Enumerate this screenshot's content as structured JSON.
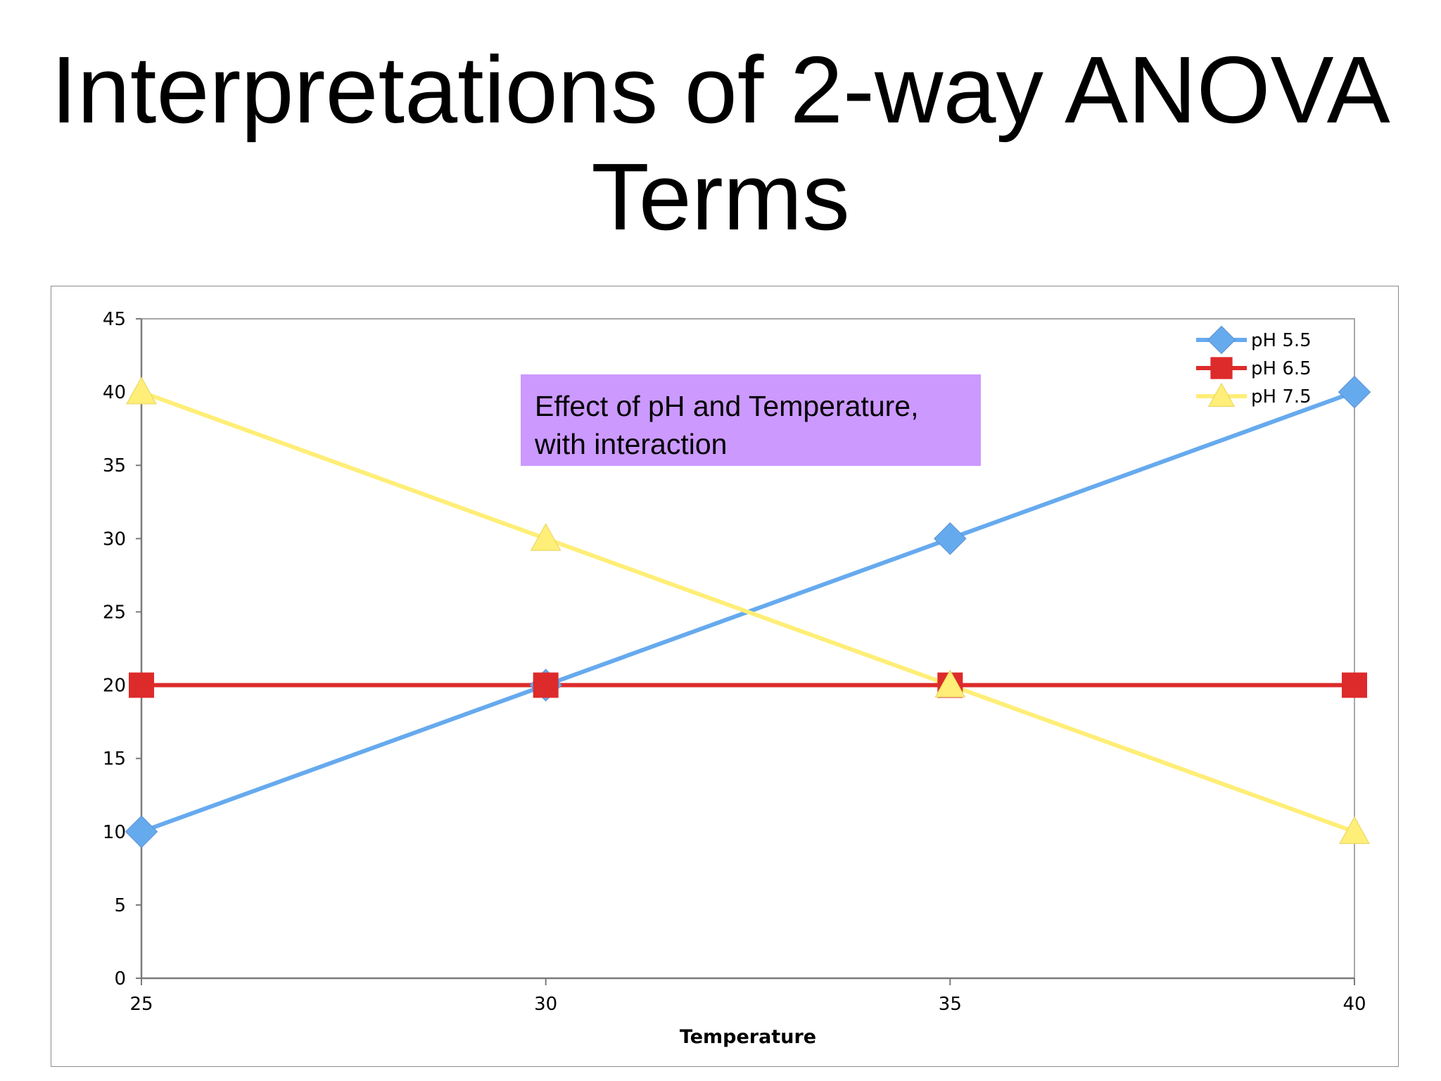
{
  "slide": {
    "title_line1": "Interpretations of 2-way ANOVA",
    "title_line2": "Terms"
  },
  "annotation": {
    "line1": "Effect of pH and Temperature,",
    "line2": "with interaction"
  },
  "chart_data": {
    "type": "line",
    "title": "",
    "xlabel": "Temperature",
    "ylabel": "",
    "x": [
      25,
      30,
      35,
      40
    ],
    "xlim": [
      25,
      40
    ],
    "ylim": [
      0,
      45
    ],
    "xticks": [
      25,
      30,
      35,
      40
    ],
    "yticks": [
      0,
      5,
      10,
      15,
      20,
      25,
      30,
      35,
      40,
      45
    ],
    "legend_position": "top-right",
    "grid": false,
    "series": [
      {
        "name": "pH 5.5",
        "values": [
          10,
          20,
          30,
          40
        ],
        "color": "#66aaee",
        "marker": "diamond"
      },
      {
        "name": "pH 6.5",
        "values": [
          20,
          20,
          20,
          20
        ],
        "color": "#dd2a2a",
        "marker": "square"
      },
      {
        "name": "pH 7.5",
        "values": [
          40,
          30,
          20,
          10
        ],
        "color": "#ffee77",
        "marker": "triangle"
      }
    ]
  }
}
